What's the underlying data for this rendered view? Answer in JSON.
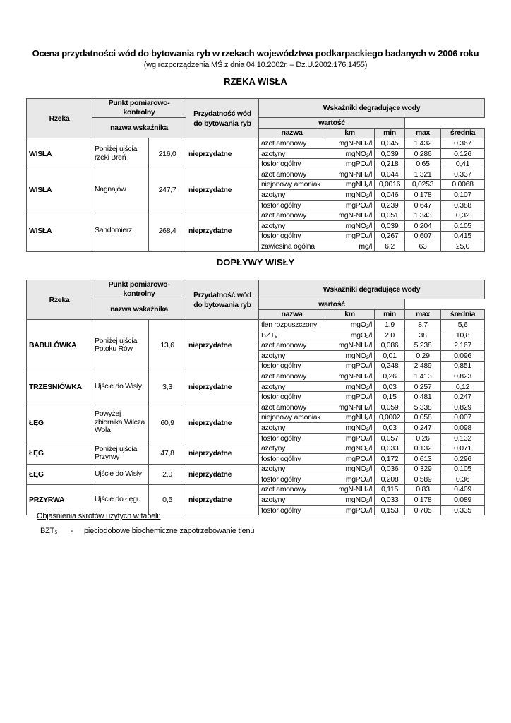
{
  "title": "Ocena przydatności wód do bytowania ryb w rzekach województwa podkarpackiego badanych w 2006 roku",
  "subtitle": "(wg rozporządzenia MŚ z dnia 04.10.2002r. – Dz.U.2002.176.1455)",
  "header": {
    "rzeka": "Rzeka",
    "punkt": "Punkt pomiarowo-kontrolny",
    "nazwa": "nazwa",
    "km": "km",
    "przydatnosc": "Przydatność wód do bytowania ryb",
    "wskazniki": "Wskaźniki degradujące wody",
    "nazwa_wskaznika": "nazwa wskaźnika",
    "wartosc": "wartość",
    "min": "min",
    "max": "max",
    "srednia": "średnia"
  },
  "sections": [
    {
      "heading": "RZEKA WISŁA",
      "rows": [
        {
          "rzeka": "WISŁA",
          "punkt": "Poniżej ujścia rzeki Breń",
          "km": "216,0",
          "przydatnosc": "nieprzydatne",
          "ind": [
            [
              "azot amonowy",
              "mgN-NH₄/l",
              "0,045",
              "1,432",
              "0,367"
            ],
            [
              "azotyny",
              "mgNO₂/l",
              "0,039",
              "0,286",
              "0,126"
            ],
            [
              "fosfor ogólny",
              "mgPO₄/l",
              "0,218",
              "0,65",
              "0,41"
            ]
          ]
        },
        {
          "rzeka": "WISŁA",
          "punkt": "Nagnajów",
          "km": "247,7",
          "przydatnosc": "nieprzydatne",
          "ind": [
            [
              "azot amonowy",
              "mgN-NH₄/l",
              "0,044",
              "1,321",
              "0,337"
            ],
            [
              "niejonowy amoniak",
              "mgNH₃/l",
              "0,0016",
              "0,0253",
              "0,0068"
            ],
            [
              "azotyny",
              "mgNO₂/l",
              "0,046",
              "0,178",
              "0,107"
            ],
            [
              "fosfor ogólny",
              "mgPO₄/l",
              "0,239",
              "0,647",
              "0,388"
            ]
          ]
        },
        {
          "rzeka": "WISŁA",
          "punkt": "Sandomierz",
          "km": "268,4",
          "przydatnosc": "nieprzydatne",
          "ind": [
            [
              "azot amonowy",
              "mgN-NH₄/l",
              "0,051",
              "1,343",
              "0,32"
            ],
            [
              "azotyny",
              "mgNO₂/l",
              "0,039",
              "0,204",
              "0,105"
            ],
            [
              "fosfor ogólny",
              "mgPO₄/l",
              "0,267",
              "0,607",
              "0,415"
            ],
            [
              "zawiesina ogólna",
              "mg/l",
              "6,2",
              "63",
              "25,0"
            ]
          ]
        }
      ]
    },
    {
      "heading": "DOPŁYWY WISŁY",
      "rows": [
        {
          "rzeka": "BABULÓWKA",
          "punkt": "Poniżej ujścia Potoku Rów",
          "km": "13,6",
          "przydatnosc": "nieprzydatne",
          "ind": [
            [
              "tlen rozpuszczony",
              "mgO₂/l",
              "1,9",
              "8,7",
              "5,6"
            ],
            [
              "BZT₅",
              "mgO₂/l",
              "2,0",
              "38",
              "10,8"
            ],
            [
              "azot amonowy",
              "mgN-NH₄/l",
              "0,086",
              "5,238",
              "2,167"
            ],
            [
              "azotyny",
              "mgNO₂/l",
              "0,01",
              "0,29",
              "0,096"
            ],
            [
              "fosfor ogólny",
              "mgPO₄/l",
              "0,248",
              "2,489",
              "0,851"
            ]
          ]
        },
        {
          "rzeka": "TRZESNIÓWKA",
          "punkt": "Ujście do Wisły",
          "km": "3,3",
          "przydatnosc": "nieprzydatne",
          "ind": [
            [
              "azot amonowy",
              "mgN-NH₄/l",
              "0,26",
              "1,413",
              "0,823"
            ],
            [
              "azotyny",
              "mgNO₂/l",
              "0,03",
              "0,257",
              "0,12"
            ],
            [
              "fosfor ogólny",
              "mgPO₄/l",
              "0,15",
              "0,481",
              "0,247"
            ]
          ]
        },
        {
          "rzeka": "ŁĘG",
          "punkt": "Powyżej zbiornika Wilcza Wola",
          "km": "60,9",
          "przydatnosc": "nieprzydatne",
          "ind": [
            [
              "azot amonowy",
              "mgN-NH₄/l",
              "0,059",
              "5,338",
              "0,829"
            ],
            [
              "niejonowy amoniak",
              "mgNH₃/l",
              "0,0002",
              "0,058",
              "0,007"
            ],
            [
              "azotyny",
              "mgNO₂/l",
              "0,03",
              "0,247",
              "0,098"
            ],
            [
              "fosfor ogólny",
              "mgPO₄/l",
              "0,057",
              "0,26",
              "0,132"
            ]
          ]
        },
        {
          "rzeka": "ŁĘG",
          "punkt": "Poniżej ujścia Przyrwy",
          "km": "47,8",
          "przydatnosc": "nieprzydatne",
          "ind": [
            [
              "azotyny",
              "mgNO₂/l",
              "0,033",
              "0,132",
              "0,071"
            ],
            [
              "fosfor ogólny",
              "mgPO₄/l",
              "0,172",
              "0,613",
              "0,296"
            ]
          ]
        },
        {
          "rzeka": "ŁĘG",
          "punkt": "Ujście do Wisły",
          "km": "2,0",
          "przydatnosc": "nieprzydatne",
          "ind": [
            [
              "azotyny",
              "mgNO₂/l",
              "0,036",
              "0,329",
              "0,105"
            ],
            [
              "fosfor ogólny",
              "mgPO₄/l",
              "0,208",
              "0,589",
              "0,36"
            ]
          ]
        },
        {
          "rzeka": "PRZYRWA",
          "punkt": "Ujście do Łęgu",
          "km": "0,5",
          "przydatnosc": "nieprzydatne",
          "ind": [
            [
              "azot amonowy",
              "mgN-NH₄/l",
              "0,115",
              "0,83",
              "0,409"
            ],
            [
              "azotyny",
              "mgNO₂/l",
              "0,033",
              "0,178",
              "0,089"
            ],
            [
              "fosfor ogólny",
              "mgPO₄/l",
              "0,153",
              "0,705",
              "0,335"
            ]
          ]
        }
      ]
    }
  ],
  "footnote": {
    "heading": "Objaśnienia skrótów użytych w tabeli:",
    "abbr": "BZT₅",
    "dash": "-",
    "desc": "pięciodobowe biochemiczne zapotrzebowanie tlenu"
  }
}
